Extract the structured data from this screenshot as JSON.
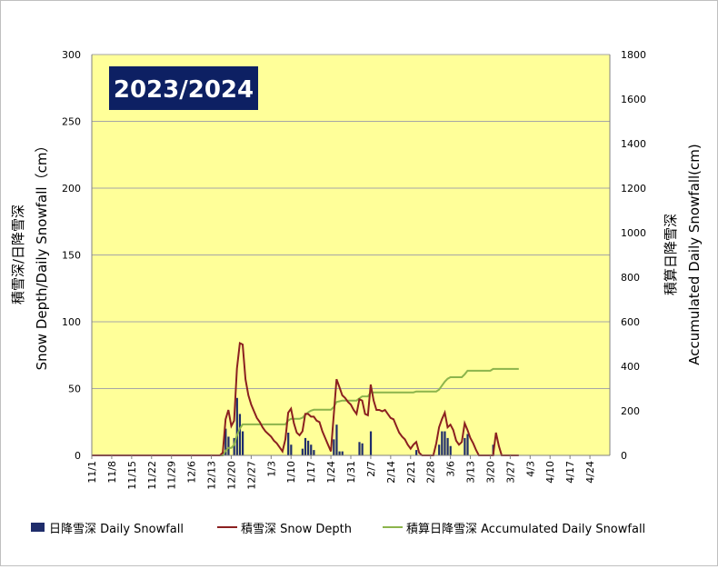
{
  "chart_data": {
    "type": "bar+line",
    "season_label": "2023/2024",
    "ylabel_left_line1": "積雪深/日降雪深",
    "ylabel_left_line2": "Snow Depth/Daily Snowfall（cm）",
    "ylabel_right_line1": "積算日降雪深",
    "ylabel_right_line2": "Accumulated Daily Snowfall(cm)",
    "ylim_left": [
      0,
      300
    ],
    "ylim_right": [
      0,
      1800
    ],
    "yticks_left": [
      "0",
      "50",
      "100",
      "150",
      "200",
      "250",
      "300"
    ],
    "yticks_right": [
      "0",
      "200",
      "400",
      "600",
      "800",
      "1000",
      "1200",
      "1400",
      "1600",
      "1800"
    ],
    "x_domain_days": [
      0,
      182
    ],
    "x_ticks": [
      {
        "day": 0,
        "label": "11/1"
      },
      {
        "day": 7,
        "label": "11/8"
      },
      {
        "day": 14,
        "label": "11/15"
      },
      {
        "day": 21,
        "label": "11/22"
      },
      {
        "day": 28,
        "label": "11/29"
      },
      {
        "day": 35,
        "label": "12/6"
      },
      {
        "day": 42,
        "label": "12/13"
      },
      {
        "day": 49,
        "label": "12/20"
      },
      {
        "day": 56,
        "label": "12/27"
      },
      {
        "day": 63,
        "label": "1/3"
      },
      {
        "day": 70,
        "label": "1/10"
      },
      {
        "day": 77,
        "label": "1/17"
      },
      {
        "day": 84,
        "label": "1/24"
      },
      {
        "day": 91,
        "label": "1/31"
      },
      {
        "day": 98,
        "label": "2/7"
      },
      {
        "day": 105,
        "label": "2/14"
      },
      {
        "day": 112,
        "label": "2/21"
      },
      {
        "day": 119,
        "label": "2/28"
      },
      {
        "day": 126,
        "label": "3/6"
      },
      {
        "day": 133,
        "label": "3/13"
      },
      {
        "day": 140,
        "label": "3/20"
      },
      {
        "day": 147,
        "label": "3/27"
      },
      {
        "day": 154,
        "label": "4/3"
      },
      {
        "day": 161,
        "label": "4/10"
      },
      {
        "day": 168,
        "label": "4/17"
      },
      {
        "day": 175,
        "label": "4/24"
      }
    ],
    "colors": {
      "plot_background": "#ffff99",
      "grid": "#a6a6a6",
      "daily_snowfall": "#1f2d6b",
      "snow_depth": "#8b2020",
      "accumulated": "#8cb44c",
      "season_box": "#0d2063"
    },
    "series": [
      {
        "name": "日降雪深 Daily Snowfall",
        "axis": "left",
        "kind": "bar",
        "points": [
          [
            47,
            20
          ],
          [
            48,
            14
          ],
          [
            50,
            13
          ],
          [
            51,
            43
          ],
          [
            52,
            31
          ],
          [
            53,
            18
          ],
          [
            69,
            17
          ],
          [
            70,
            8
          ],
          [
            74,
            5
          ],
          [
            75,
            13
          ],
          [
            76,
            11
          ],
          [
            77,
            8
          ],
          [
            78,
            4
          ],
          [
            85,
            12
          ],
          [
            86,
            23
          ],
          [
            87,
            3
          ],
          [
            88,
            3
          ],
          [
            94,
            10
          ],
          [
            95,
            9
          ],
          [
            98,
            18
          ],
          [
            114,
            4
          ],
          [
            122,
            8
          ],
          [
            123,
            18
          ],
          [
            124,
            18
          ],
          [
            125,
            13
          ],
          [
            126,
            7
          ],
          [
            131,
            13
          ],
          [
            132,
            16
          ],
          [
            141,
            8
          ]
        ]
      },
      {
        "name": "積雪深 Snow Depth",
        "axis": "left",
        "kind": "line",
        "points": [
          [
            0,
            0
          ],
          [
            45,
            0
          ],
          [
            46,
            2
          ],
          [
            47,
            27
          ],
          [
            48,
            34
          ],
          [
            49,
            22
          ],
          [
            50,
            26
          ],
          [
            51,
            65
          ],
          [
            52,
            84
          ],
          [
            53,
            83
          ],
          [
            54,
            57
          ],
          [
            55,
            45
          ],
          [
            56,
            38
          ],
          [
            57,
            33
          ],
          [
            58,
            28
          ],
          [
            59,
            25
          ],
          [
            60,
            21
          ],
          [
            61,
            18
          ],
          [
            62,
            16
          ],
          [
            63,
            14
          ],
          [
            64,
            11
          ],
          [
            65,
            9
          ],
          [
            66,
            6
          ],
          [
            67,
            3
          ],
          [
            68,
            12
          ],
          [
            69,
            32
          ],
          [
            70,
            35
          ],
          [
            71,
            24
          ],
          [
            72,
            17
          ],
          [
            73,
            15
          ],
          [
            74,
            18
          ],
          [
            75,
            31
          ],
          [
            76,
            31
          ],
          [
            77,
            29
          ],
          [
            78,
            29
          ],
          [
            79,
            26
          ],
          [
            80,
            25
          ],
          [
            81,
            18
          ],
          [
            82,
            13
          ],
          [
            83,
            8
          ],
          [
            84,
            3
          ],
          [
            85,
            30
          ],
          [
            86,
            57
          ],
          [
            87,
            51
          ],
          [
            88,
            45
          ],
          [
            89,
            43
          ],
          [
            90,
            40
          ],
          [
            91,
            38
          ],
          [
            92,
            34
          ],
          [
            93,
            31
          ],
          [
            94,
            42
          ],
          [
            95,
            41
          ],
          [
            96,
            31
          ],
          [
            97,
            30
          ],
          [
            98,
            53
          ],
          [
            99,
            41
          ],
          [
            100,
            34
          ],
          [
            101,
            34
          ],
          [
            102,
            33
          ],
          [
            103,
            34
          ],
          [
            104,
            31
          ],
          [
            105,
            28
          ],
          [
            106,
            27
          ],
          [
            107,
            22
          ],
          [
            108,
            17
          ],
          [
            109,
            14
          ],
          [
            110,
            12
          ],
          [
            111,
            8
          ],
          [
            112,
            5
          ],
          [
            113,
            8
          ],
          [
            114,
            10
          ],
          [
            115,
            2
          ],
          [
            116,
            0
          ],
          [
            120,
            0
          ],
          [
            121,
            9
          ],
          [
            122,
            21
          ],
          [
            123,
            27
          ],
          [
            124,
            32
          ],
          [
            125,
            21
          ],
          [
            126,
            23
          ],
          [
            127,
            19
          ],
          [
            128,
            11
          ],
          [
            129,
            8
          ],
          [
            130,
            10
          ],
          [
            131,
            24
          ],
          [
            132,
            19
          ],
          [
            133,
            13
          ],
          [
            134,
            9
          ],
          [
            135,
            4
          ],
          [
            136,
            0
          ],
          [
            141,
            0
          ],
          [
            142,
            17
          ],
          [
            143,
            7
          ],
          [
            144,
            0
          ],
          [
            150,
            0
          ]
        ]
      },
      {
        "name": "積算日降雪深 Accumulated Daily Snowfall",
        "axis": "right",
        "kind": "line",
        "points": [
          [
            0,
            0
          ],
          [
            46,
            0
          ],
          [
            47,
            20
          ],
          [
            48,
            34
          ],
          [
            49,
            34
          ],
          [
            50,
            47
          ],
          [
            51,
            90
          ],
          [
            52,
            121
          ],
          [
            53,
            139
          ],
          [
            68,
            139
          ],
          [
            69,
            156
          ],
          [
            70,
            164
          ],
          [
            73,
            164
          ],
          [
            74,
            169
          ],
          [
            75,
            182
          ],
          [
            76,
            193
          ],
          [
            77,
            201
          ],
          [
            78,
            205
          ],
          [
            84,
            205
          ],
          [
            85,
            217
          ],
          [
            86,
            240
          ],
          [
            87,
            243
          ],
          [
            88,
            246
          ],
          [
            93,
            246
          ],
          [
            94,
            256
          ],
          [
            95,
            265
          ],
          [
            97,
            265
          ],
          [
            98,
            283
          ],
          [
            113,
            283
          ],
          [
            114,
            287
          ],
          [
            121,
            287
          ],
          [
            122,
            295
          ],
          [
            123,
            313
          ],
          [
            124,
            331
          ],
          [
            125,
            344
          ],
          [
            126,
            351
          ],
          [
            130,
            351
          ],
          [
            131,
            364
          ],
          [
            132,
            380
          ],
          [
            140,
            380
          ],
          [
            141,
            388
          ],
          [
            150,
            388
          ]
        ]
      }
    ],
    "legend_placement": "bottom",
    "grid": true
  }
}
